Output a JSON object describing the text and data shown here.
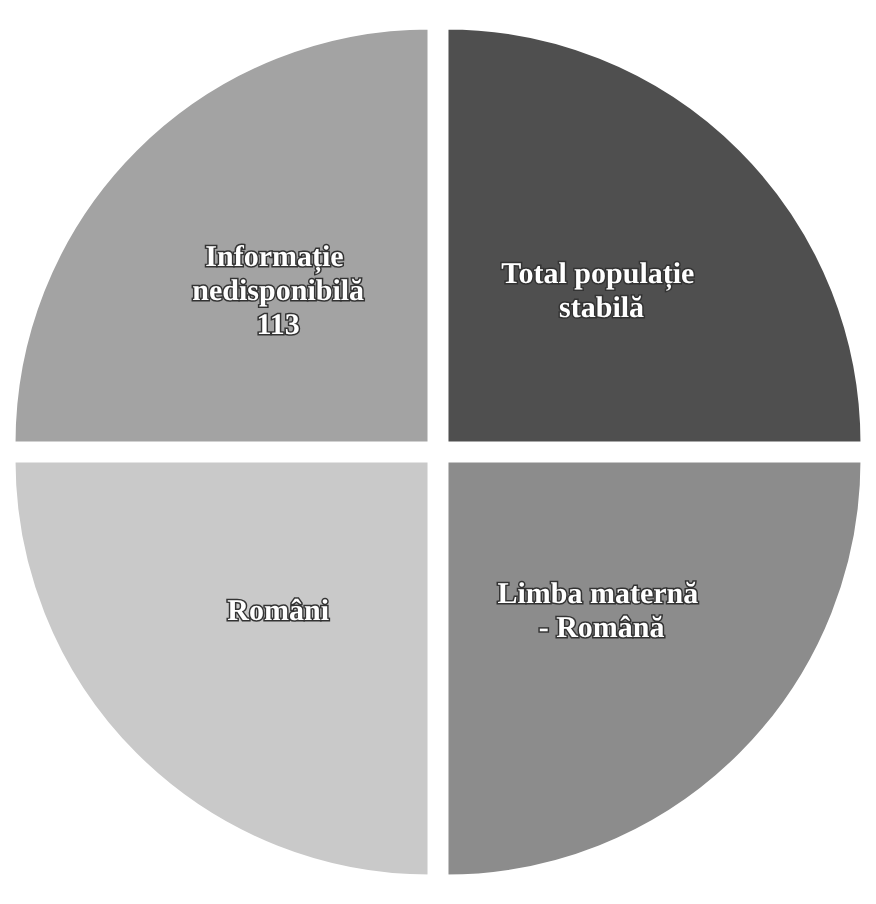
{
  "chart_data": {
    "type": "pie",
    "categories": [
      "Total populație stabilă",
      "Limba maternă - Română",
      "Români",
      "Informație nedisponibilă"
    ],
    "values": [
      113,
      113,
      113,
      113
    ],
    "value_labels": [
      null,
      null,
      null,
      "113"
    ],
    "colors": [
      "#4f4f4f",
      "#8c8c8c",
      "#c9c9c9",
      "#a3a3a3"
    ],
    "legend": false
  }
}
